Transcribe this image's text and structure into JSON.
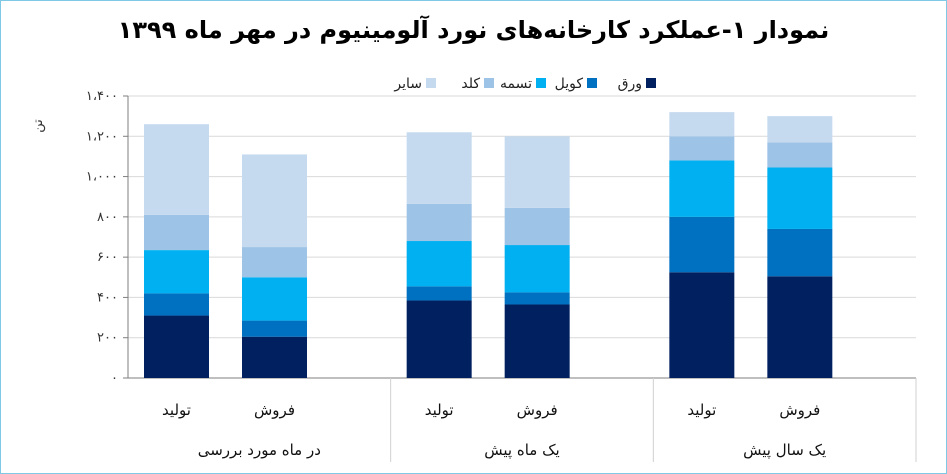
{
  "chart_data": {
    "type": "bar",
    "stacked": true,
    "title": "نمودار ۱-عملکرد کارخانه‌های نورد آلومینیوم در مهر ماه ۱۳۹۹",
    "ylabel": "تن",
    "ylim": [
      0,
      1400
    ],
    "y_ticks": [
      0,
      200,
      400,
      600,
      800,
      1000,
      1200,
      1400
    ],
    "y_tick_labels": [
      "۰",
      "۲۰۰",
      "۴۰۰",
      "۶۰۰",
      "۸۰۰",
      "۱،۰۰۰",
      "۱،۲۰۰",
      "۱،۴۰۰"
    ],
    "grid": true,
    "legend_position": "top",
    "groups": [
      "در ماه مورد بررسی",
      "یک ماه پیش",
      "یک سال پیش"
    ],
    "categories": [
      "تولید",
      "فروش",
      "تولید",
      "فروش",
      "تولید",
      "فروش"
    ],
    "series": [
      {
        "name": "ورق",
        "color": "#002060",
        "values": [
          310,
          205,
          385,
          365,
          525,
          505
        ]
      },
      {
        "name": "کویل",
        "color": "#0070c0",
        "values": [
          110,
          80,
          70,
          60,
          275,
          235
        ]
      },
      {
        "name": "تسمه",
        "color": "#00b0f0",
        "values": [
          215,
          215,
          225,
          235,
          280,
          305
        ]
      },
      {
        "name": "کلد",
        "color": "#9dc3e6",
        "values": [
          175,
          150,
          185,
          185,
          120,
          125
        ]
      },
      {
        "name": "سایر",
        "color": "#c6daef",
        "values": [
          450,
          460,
          355,
          355,
          120,
          130
        ]
      }
    ]
  }
}
